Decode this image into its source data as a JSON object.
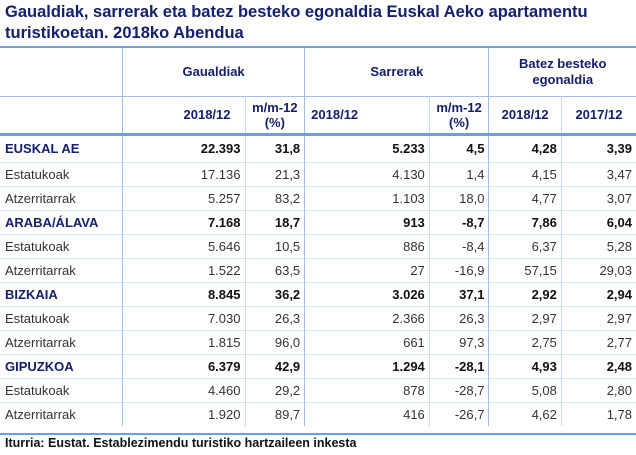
{
  "title": "Gaualdiak, sarrerak eta batez besteko egonaldia Euskal Aeko apartamentu turistikoetan. 2018ko Abendua",
  "header": {
    "groups": [
      "Gaualdiak",
      "Sarrerak",
      "Batez besteko egonaldia"
    ],
    "subs": [
      "2018/12",
      "m/m-12 (%)",
      "2018/12",
      "m/m-12 (%)",
      "2018/12",
      "2017/12"
    ]
  },
  "rows": [
    {
      "label": "EUSKAL AE",
      "type": "region",
      "values": [
        "22.393",
        "31,8",
        "5.233",
        "4,5",
        "4,28",
        "3,39"
      ]
    },
    {
      "label": "Estatukoak",
      "type": "sub",
      "values": [
        "17.136",
        "21,3",
        "4.130",
        "1,4",
        "4,15",
        "3,47"
      ]
    },
    {
      "label": "Atzerritarrak",
      "type": "sub",
      "values": [
        "5.257",
        "83,2",
        "1.103",
        "18,0",
        "4,77",
        "3,07"
      ]
    },
    {
      "label": "ARABA/ÁLAVA",
      "type": "region",
      "values": [
        "7.168",
        "18,7",
        "913",
        "-8,7",
        "7,86",
        "6,04"
      ]
    },
    {
      "label": "Estatukoak",
      "type": "sub",
      "values": [
        "5.646",
        "10,5",
        "886",
        "-8,4",
        "6,37",
        "5,28"
      ]
    },
    {
      "label": "Atzerritarrak",
      "type": "sub",
      "values": [
        "1.522",
        "63,5",
        "27",
        "-16,9",
        "57,15",
        "29,03"
      ]
    },
    {
      "label": "BIZKAIA",
      "type": "region",
      "values": [
        "8.845",
        "36,2",
        "3.026",
        "37,1",
        "2,92",
        "2,94"
      ]
    },
    {
      "label": "Estatukoak",
      "type": "sub",
      "values": [
        "7.030",
        "26,3",
        "2.366",
        "26,3",
        "2,97",
        "2,97"
      ]
    },
    {
      "label": "Atzerritarrak",
      "type": "sub",
      "values": [
        "1.815",
        "96,0",
        "661",
        "97,3",
        "2,75",
        "2,77"
      ]
    },
    {
      "label": "GIPUZKOA",
      "type": "region",
      "values": [
        "6.379",
        "42,9",
        "1.294",
        "-28,1",
        "4,93",
        "2,48"
      ]
    },
    {
      "label": "Estatukoak",
      "type": "sub",
      "values": [
        "4.460",
        "29,2",
        "878",
        "-28,7",
        "5,08",
        "2,80"
      ]
    },
    {
      "label": "Atzerritarrak",
      "type": "sub",
      "values": [
        "1.920",
        "89,7",
        "416",
        "-26,7",
        "4,62",
        "1,78"
      ]
    }
  ],
  "source": "Iturria: Eustat. Establezimendu turistiko hartzaileen inkesta"
}
